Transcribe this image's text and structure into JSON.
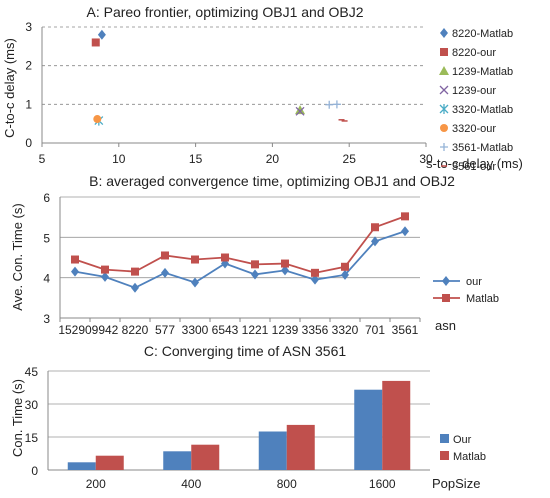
{
  "chart_data": [
    {
      "type": "scatter",
      "title": "A: Pareo frontier, optimizing OBJ1 and OBJ2",
      "xlabel": "s-to-c delay (ms)",
      "ylabel": "C-to-c delay (ms)",
      "xlim": [
        5,
        30
      ],
      "ylim": [
        0,
        3
      ],
      "xticks": [
        5,
        10,
        15,
        20,
        25,
        30
      ],
      "yticks": [
        0,
        1,
        2,
        3
      ],
      "grid": "horizontal dashed",
      "legend_position": "right",
      "series": [
        {
          "name": "8220-Matlab",
          "marker": "diamond",
          "color": "#4F81BD",
          "points": [
            [
              8.9,
              2.8
            ]
          ]
        },
        {
          "name": "8220-our",
          "marker": "square",
          "color": "#C0504D",
          "points": [
            [
              8.5,
              2.6
            ]
          ]
        },
        {
          "name": "1239-Matlab",
          "marker": "triangle",
          "color": "#9BBB59",
          "points": [
            [
              21.8,
              0.85
            ]
          ]
        },
        {
          "name": "1239-our",
          "marker": "x",
          "color": "#8064A2",
          "points": [
            [
              21.8,
              0.82
            ]
          ]
        },
        {
          "name": "3320-Matlab",
          "marker": "star",
          "color": "#4BACC6",
          "points": [
            [
              8.7,
              0.58
            ]
          ]
        },
        {
          "name": "3320-our",
          "marker": "circle",
          "color": "#F79646",
          "points": [
            [
              8.6,
              0.62
            ]
          ]
        },
        {
          "name": "3561-Matlab",
          "marker": "plus",
          "color": "#95B3D7",
          "points": [
            [
              23.7,
              0.99
            ],
            [
              24.2,
              1.0
            ]
          ]
        },
        {
          "name": "3561-our",
          "marker": "dash",
          "color": "#C0504D",
          "points": [
            [
              24.5,
              0.6
            ],
            [
              24.7,
              0.57
            ]
          ]
        }
      ]
    },
    {
      "type": "line",
      "title": "B: averaged convergence time, optimizing OBJ1 and OBJ2",
      "xlabel": "asn",
      "ylabel": "Ave. Con. Time (s)",
      "ylim": [
        3,
        6
      ],
      "yticks": [
        3,
        4,
        5,
        6
      ],
      "grid": "horizontal",
      "legend_position": "right",
      "categories": [
        "15290",
        "9942",
        "8220",
        "577",
        "3300",
        "6543",
        "1221",
        "1239",
        "3356",
        "3320",
        "701",
        "3561"
      ],
      "series": [
        {
          "name": "our",
          "marker": "diamond",
          "color": "#4F81BD",
          "values": [
            4.15,
            4.02,
            3.75,
            4.12,
            3.88,
            4.35,
            4.08,
            4.18,
            3.95,
            4.07,
            4.9,
            5.15
          ]
        },
        {
          "name": "Matlab",
          "marker": "square",
          "color": "#C0504D",
          "values": [
            4.45,
            4.2,
            4.15,
            4.55,
            4.45,
            4.5,
            4.33,
            4.35,
            4.12,
            4.27,
            5.25,
            5.52
          ]
        }
      ]
    },
    {
      "type": "bar",
      "title": "C: Converging time of ASN 3561",
      "xlabel": "PopSize",
      "ylabel": "Con. Time (s)",
      "ylim": [
        0,
        45
      ],
      "yticks": [
        0,
        15,
        30,
        45
      ],
      "grid": "horizontal",
      "legend_position": "right",
      "categories": [
        "200",
        "400",
        "800",
        "1600"
      ],
      "series": [
        {
          "name": "Our",
          "color": "#4F81BD",
          "values": [
            3.5,
            8.5,
            17.5,
            36.5
          ]
        },
        {
          "name": "Matlab",
          "color": "#C0504D",
          "values": [
            6.5,
            11.5,
            20.5,
            40.5
          ]
        }
      ]
    }
  ]
}
